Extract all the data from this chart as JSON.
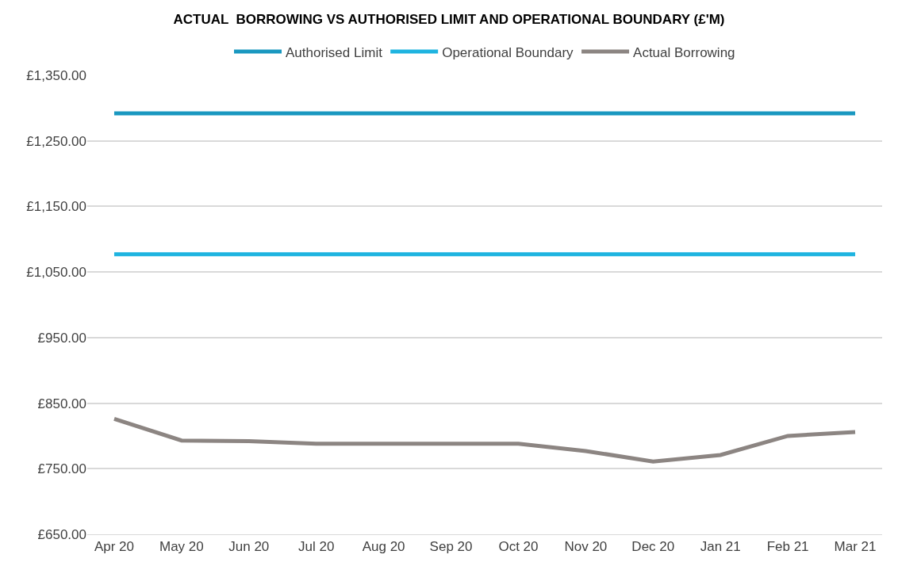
{
  "chart_data": {
    "type": "line",
    "title": "ACTUAL  BORROWING VS AUTHORISED LIMIT AND OPERATIONAL BOUNDARY (£'M)",
    "categories": [
      "Apr 20",
      "May 20",
      "Jun 20",
      "Jul 20",
      "Aug 20",
      "Sep 20",
      "Oct 20",
      "Nov 20",
      "Dec 20",
      "Jan 21",
      "Feb 21",
      "Mar 21"
    ],
    "series": [
      {
        "name": "Authorised Limit",
        "color": "#1a98c0",
        "values": [
          1292,
          1292,
          1292,
          1292,
          1292,
          1292,
          1292,
          1292,
          1292,
          1292,
          1292,
          1292
        ]
      },
      {
        "name": "Operational Boundary",
        "color": "#1fb4e0",
        "values": [
          1077,
          1077,
          1077,
          1077,
          1077,
          1077,
          1077,
          1077,
          1077,
          1077,
          1077,
          1077
        ]
      },
      {
        "name": "Actual Borrowing",
        "color": "#8c8582",
        "values": [
          826,
          793,
          792,
          788,
          788,
          788,
          788,
          777,
          761,
          771,
          800,
          806
        ]
      }
    ],
    "ylim": [
      650,
      1350
    ],
    "yticks": [
      {
        "value": 650,
        "label": "£650.00"
      },
      {
        "value": 750,
        "label": "£750.00"
      },
      {
        "value": 850,
        "label": "£850.00"
      },
      {
        "value": 950,
        "label": "£950.00"
      },
      {
        "value": 1050,
        "label": "£1,050.00"
      },
      {
        "value": 1150,
        "label": "£1,150.00"
      },
      {
        "value": 1250,
        "label": "£1,250.00"
      },
      {
        "value": 1350,
        "label": "£1,350.00"
      }
    ],
    "grid": "y",
    "legend": "top",
    "marker": "none",
    "line_style": "solid"
  }
}
